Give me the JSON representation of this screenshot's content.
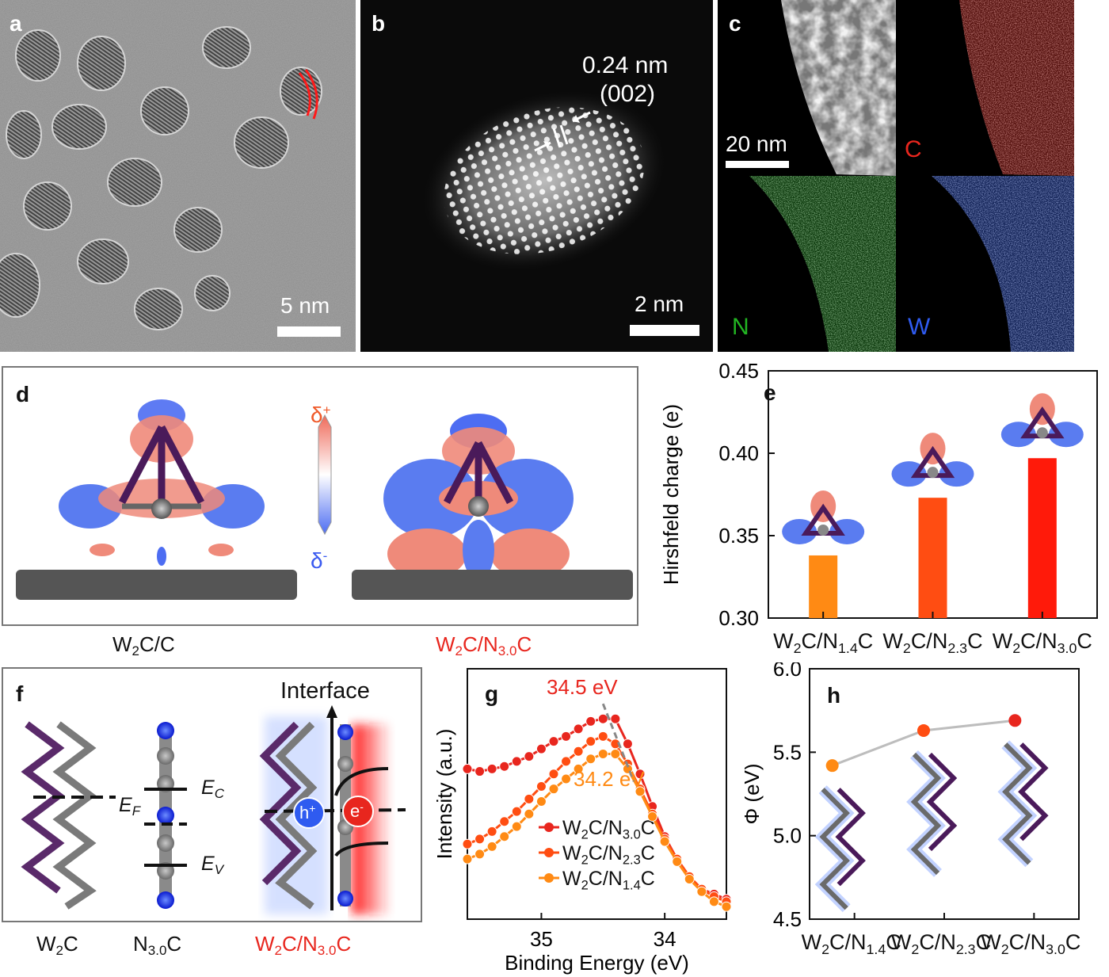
{
  "panels": {
    "a": {
      "letter": "a",
      "scale_bar": "5 nm"
    },
    "b": {
      "letter": "b",
      "scale_bar": "2 nm",
      "lattice_spacing": "0.24 nm",
      "lattice_plane": "(002)"
    },
    "c": {
      "letter": "c",
      "scale_bar": "20 nm",
      "maps": [
        {
          "element": "C",
          "color": "#e8261e"
        },
        {
          "element": "N",
          "color": "#22b522"
        },
        {
          "element": "W",
          "color": "#2f5bf0"
        }
      ]
    },
    "d": {
      "letter": "d",
      "plus_label": "δ",
      "plus_sign": "+",
      "minus_label": "δ",
      "minus_sign": "-",
      "caption_left": {
        "main": "W",
        "sub": "2",
        "rest": "C/C"
      },
      "caption_right": {
        "main": "W",
        "sub": "2",
        "mid": "C/N",
        "sub2": "3.0",
        "rest": "C"
      }
    },
    "e": {
      "letter": "e"
    },
    "f": {
      "letter": "f",
      "interface": "Interface",
      "ef": "E",
      "ef_sub": "F",
      "ec": "E",
      "ec_sub": "C",
      "ev": "E",
      "ev_sub": "V",
      "hole": "h",
      "hole_sup": "+",
      "electron": "e",
      "electron_sup": "-",
      "captions": [
        {
          "main": "W",
          "sub": "2",
          "rest": "C",
          "color": "#111111"
        },
        {
          "main": "N",
          "sub": "3.0",
          "rest": "C",
          "color": "#111111"
        },
        {
          "main": "W",
          "sub": "2",
          "mid": "C/N",
          "sub2": "3.0",
          "rest": "C",
          "color": "#e8261e"
        }
      ]
    },
    "g": {
      "letter": "g",
      "peak_high": "34.5 eV",
      "peak_low": "34.2 eV"
    },
    "h": {
      "letter": "h"
    }
  },
  "colors": {
    "red": "#e8261e",
    "orange_red": "#ff4d12",
    "orange": "#ff8a14"
  },
  "chart_data": [
    {
      "id": "e",
      "type": "bar",
      "categories": [
        {
          "main": "W",
          "sub": "2",
          "mid": "C/N",
          "sub2": "1.4",
          "rest": "C"
        },
        {
          "main": "W",
          "sub": "2",
          "mid": "C/N",
          "sub2": "2.3",
          "rest": "C"
        },
        {
          "main": "W",
          "sub": "2",
          "mid": "C/N",
          "sub2": "3.0",
          "rest": "C"
        }
      ],
      "values": [
        0.338,
        0.373,
        0.397
      ],
      "bar_colors": [
        "#ff8a14",
        "#ff4d12",
        "#ff1a0a"
      ],
      "ylabel": "Hirshfeld charge (e)",
      "ylim": [
        0.3,
        0.45
      ],
      "yticks": [
        "0.30",
        "0.35",
        "0.40",
        "0.45"
      ]
    },
    {
      "id": "g",
      "type": "line",
      "xlabel": "Binding Energy (eV)",
      "ylabel": "Intensity (a.u.)",
      "xlim": [
        35.6,
        33.5
      ],
      "xticks": [
        "35",
        "34"
      ],
      "series": [
        {
          "name": {
            "main": "W",
            "sub": "2",
            "mid": "C/N",
            "sub2": "3.0",
            "rest": "C"
          },
          "color": "#e8261e",
          "x": [
            35.6,
            35.5,
            35.4,
            35.3,
            35.2,
            35.1,
            35.0,
            34.9,
            34.8,
            34.7,
            34.6,
            34.5,
            34.4,
            34.3,
            34.2,
            34.1,
            34.0,
            33.9,
            33.8,
            33.7,
            33.6,
            33.5
          ],
          "y": [
            0.6,
            0.59,
            0.6,
            0.61,
            0.63,
            0.65,
            0.68,
            0.71,
            0.73,
            0.76,
            0.79,
            0.8,
            0.8,
            0.7,
            0.58,
            0.45,
            0.33,
            0.24,
            0.17,
            0.12,
            0.1,
            0.08
          ]
        },
        {
          "name": {
            "main": "W",
            "sub": "2",
            "mid": "C/N",
            "sub2": "2.3",
            "rest": "C"
          },
          "color": "#ff4d12",
          "x": [
            35.6,
            35.5,
            35.4,
            35.3,
            35.2,
            35.1,
            35.0,
            34.9,
            34.8,
            34.7,
            34.6,
            34.5,
            34.4,
            34.3,
            34.2,
            34.1,
            34.0,
            33.9,
            33.8,
            33.7,
            33.6,
            33.5
          ],
          "y": [
            0.3,
            0.32,
            0.35,
            0.39,
            0.43,
            0.48,
            0.53,
            0.58,
            0.63,
            0.67,
            0.71,
            0.73,
            0.7,
            0.62,
            0.52,
            0.42,
            0.32,
            0.24,
            0.17,
            0.12,
            0.09,
            0.07
          ]
        },
        {
          "name": {
            "main": "W",
            "sub": "2",
            "mid": "C/N",
            "sub2": "1.4",
            "rest": "C"
          },
          "color": "#ff8a14",
          "x": [
            35.6,
            35.5,
            35.4,
            35.3,
            35.2,
            35.1,
            35.0,
            34.9,
            34.8,
            34.7,
            34.6,
            34.5,
            34.4,
            34.3,
            34.2,
            34.1,
            34.0,
            33.9,
            33.8,
            33.7,
            33.6,
            33.5
          ],
          "y": [
            0.24,
            0.26,
            0.29,
            0.33,
            0.37,
            0.42,
            0.47,
            0.52,
            0.56,
            0.6,
            0.64,
            0.66,
            0.66,
            0.6,
            0.51,
            0.41,
            0.31,
            0.23,
            0.16,
            0.11,
            0.07,
            0.05
          ]
        }
      ]
    },
    {
      "id": "h",
      "type": "line",
      "ylabel": "Φ (eV)",
      "categories": [
        {
          "main": "W",
          "sub": "2",
          "mid": "C/N",
          "sub2": "1.4",
          "rest": "C"
        },
        {
          "main": "W",
          "sub": "2",
          "mid": "C/N",
          "sub2": "2.3",
          "rest": "C"
        },
        {
          "main": "W",
          "sub": "2",
          "mid": "C/N",
          "sub2": "3.0",
          "rest": "C"
        }
      ],
      "values": [
        5.42,
        5.63,
        5.69
      ],
      "point_colors": [
        "#ff8a14",
        "#ff4d12",
        "#e8261e"
      ],
      "ylim": [
        4.5,
        6.0
      ],
      "yticks": [
        "4.5",
        "5.0",
        "5.5",
        "6.0"
      ]
    }
  ]
}
